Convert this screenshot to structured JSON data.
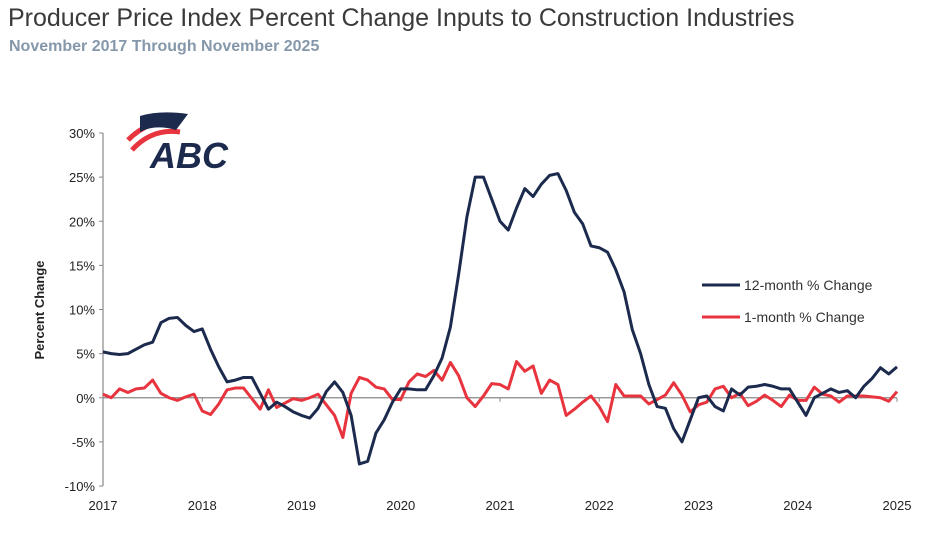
{
  "title": "Producer Price Index Percent Change Inputs to Construction Industries",
  "subtitle": "November 2017 Through November 2025",
  "logo_text": "ABC",
  "colors": {
    "series_12m": "#1b2a4d",
    "series_1m": "#e8343e",
    "title": "#3a3a3a",
    "subtitle": "#8597aa"
  },
  "chart_data": {
    "type": "line",
    "title": "Producer Price Index Percent Change Inputs to Construction Industries",
    "subtitle": "November 2017 Through November 2025",
    "xlabel": "",
    "ylabel": "Percent Change",
    "ylim": [
      -10,
      30
    ],
    "yticks": [
      -10,
      -5,
      0,
      5,
      10,
      15,
      20,
      25,
      30
    ],
    "ytick_labels": [
      "-10%",
      "-5%",
      "0%",
      "5%",
      "10%",
      "15%",
      "20%",
      "25%",
      "30%"
    ],
    "x_range": [
      "2017-11",
      "2025-11"
    ],
    "xtick_labels": [
      "2017",
      "2018",
      "2019",
      "2020",
      "2021",
      "2022",
      "2023",
      "2024",
      "2025"
    ],
    "grid": false,
    "legend_position": "right",
    "series": [
      {
        "name": "12-month % Change",
        "color": "#1b2a4d",
        "values": [
          5.2,
          5.0,
          4.9,
          5.0,
          5.5,
          6.0,
          6.3,
          8.5,
          9.0,
          9.1,
          8.2,
          7.5,
          7.8,
          5.5,
          3.5,
          1.8,
          2.0,
          2.3,
          2.3,
          0.5,
          -1.3,
          -0.5,
          -1.0,
          -1.6,
          -2.0,
          -2.3,
          -1.2,
          0.7,
          1.8,
          0.6,
          -2.0,
          -7.5,
          -7.2,
          -4.0,
          -2.5,
          -0.5,
          1.0,
          1.0,
          0.9,
          0.9,
          2.5,
          4.5,
          8.0,
          14.0,
          20.5,
          25.0,
          25.0,
          22.5,
          20.0,
          19.0,
          21.5,
          23.7,
          22.8,
          24.2,
          25.2,
          25.4,
          23.5,
          21.0,
          19.7,
          17.2,
          17.0,
          16.5,
          14.5,
          12.0,
          7.7,
          5.0,
          1.5,
          -1.0,
          -1.2,
          -3.5,
          -5.0,
          -2.5,
          0.0,
          0.2,
          -1.0,
          -1.5,
          1.0,
          0.3,
          1.2,
          1.3,
          1.5,
          1.3,
          1.0,
          1.0,
          -0.5,
          -2.0,
          0.0,
          0.5,
          1.0,
          0.6,
          0.8,
          0.0,
          1.3,
          2.2,
          3.4,
          2.7,
          3.5
        ]
      },
      {
        "name": "1-month % Change",
        "color": "#e8343e",
        "values": [
          0.4,
          0.0,
          1.0,
          0.6,
          1.0,
          1.1,
          2.0,
          0.5,
          0.0,
          -0.3,
          0.1,
          0.4,
          -1.5,
          -1.9,
          -0.7,
          0.9,
          1.1,
          1.1,
          -0.1,
          -1.3,
          0.9,
          -1.1,
          -0.6,
          -0.1,
          -0.3,
          0.0,
          0.4,
          -0.8,
          -2.0,
          -4.5,
          0.5,
          2.3,
          2.0,
          1.2,
          1.0,
          -0.2,
          -0.2,
          1.8,
          2.7,
          2.4,
          3.1,
          2.0,
          4.0,
          2.5,
          0.0,
          -1.0,
          0.2,
          1.6,
          1.5,
          1.0,
          4.1,
          3.0,
          3.6,
          0.5,
          2.0,
          1.5,
          -2.0,
          -1.3,
          -0.5,
          0.2,
          -1.0,
          -2.7,
          1.5,
          0.2,
          0.2,
          0.2,
          -0.7,
          -0.2,
          0.3,
          1.7,
          0.3,
          -1.6,
          -0.8,
          -0.5,
          1.0,
          1.3,
          0.0,
          0.5,
          -0.9,
          -0.4,
          0.3,
          -0.3,
          -1.0,
          0.3,
          -0.3,
          -0.3,
          1.2,
          0.4,
          0.2,
          -0.5,
          0.2,
          0.2,
          0.2,
          0.1,
          0.0,
          -0.4,
          0.7
        ]
      }
    ]
  }
}
